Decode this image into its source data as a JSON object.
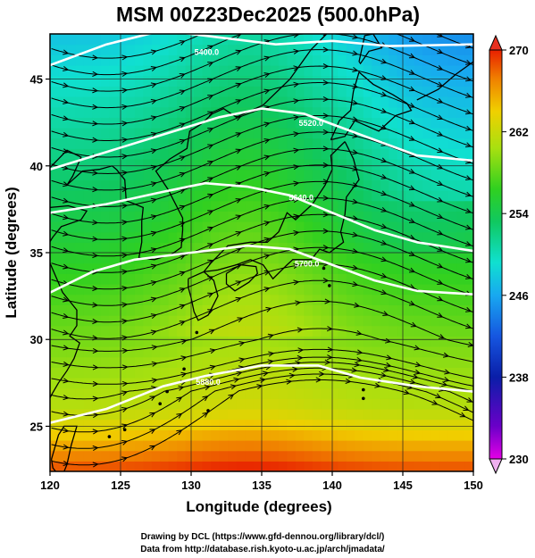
{
  "title": "MSM 00Z23Dec2025 (500.0hPa)",
  "chart_data": {
    "type": "heatmap",
    "title": "MSM 00Z23Dec2025 (500.0hPa)",
    "xlabel": "Longitude (degrees)",
    "ylabel": "Latitude  (degrees)",
    "xlim": [
      120,
      150
    ],
    "ylim": [
      22.4,
      47.6
    ],
    "xticks": [
      120,
      125,
      130,
      135,
      140,
      145,
      150
    ],
    "yticks": [
      25,
      30,
      35,
      40,
      45
    ],
    "grid": true,
    "colorbar": {
      "min": 230,
      "max": 270,
      "ticks": [
        230,
        238,
        246,
        254,
        262,
        270
      ]
    },
    "contours": [
      {
        "label": "5400.0",
        "points": [
          [
            120,
            45.8
          ],
          [
            124,
            47.0
          ],
          [
            128,
            47.8
          ],
          [
            132,
            47.4
          ],
          [
            136,
            47.0
          ],
          [
            140,
            47.2
          ],
          [
            144,
            46.9
          ],
          [
            150,
            47.0
          ]
        ]
      },
      {
        "label": "5520.0",
        "points": [
          [
            120,
            39.8
          ],
          [
            124,
            40.8
          ],
          [
            128,
            41.8
          ],
          [
            132,
            42.8
          ],
          [
            135,
            43.3
          ],
          [
            138,
            43.0
          ],
          [
            142,
            41.8
          ],
          [
            146,
            40.6
          ],
          [
            150,
            40.3
          ]
        ]
      },
      {
        "label": "5640.0",
        "points": [
          [
            120,
            37.3
          ],
          [
            124,
            37.8
          ],
          [
            128,
            38.5
          ],
          [
            131,
            39.0
          ],
          [
            134,
            38.8
          ],
          [
            137,
            38.3
          ],
          [
            140,
            37.3
          ],
          [
            143,
            36.3
          ],
          [
            146,
            35.6
          ],
          [
            150,
            35.1
          ]
        ]
      },
      {
        "label": "5700.0",
        "points": [
          [
            120,
            32.7
          ],
          [
            123,
            33.9
          ],
          [
            126,
            34.6
          ],
          [
            130,
            35.0
          ],
          [
            134,
            35.4
          ],
          [
            137,
            35.2
          ],
          [
            140,
            34.3
          ],
          [
            143,
            33.4
          ],
          [
            146,
            32.8
          ],
          [
            150,
            32.6
          ]
        ]
      },
      {
        "label": "5880.0",
        "points": [
          [
            120,
            25.2
          ],
          [
            124,
            26.0
          ],
          [
            128,
            27.3
          ],
          [
            131,
            27.9
          ],
          [
            135,
            28.5
          ],
          [
            139,
            28.5
          ],
          [
            142,
            27.8
          ],
          [
            146,
            27.3
          ],
          [
            150,
            27.0
          ]
        ]
      }
    ],
    "contour_label_positions": [
      {
        "label": "5400.0",
        "lon": 131.1,
        "lat": 46.4
      },
      {
        "label": "5520.0",
        "lon": 138.5,
        "lat": 42.3
      },
      {
        "label": "5640.0",
        "lon": 137.8,
        "lat": 38.0
      },
      {
        "label": "5700.0",
        "lon": 138.2,
        "lat": 34.2
      },
      {
        "label": "5880.0",
        "lon": 131.2,
        "lat": 27.4
      }
    ],
    "temperature_field_description_levels": [
      240,
      243,
      247,
      252,
      256,
      260,
      264
    ]
  },
  "credits": {
    "line1": "Drawing by DCL (https://www.gfd-dennou.org/library/dcl/)",
    "line2": "Data from http://database.rish.kyoto-u.ac.jp/arch/jmadata/"
  }
}
